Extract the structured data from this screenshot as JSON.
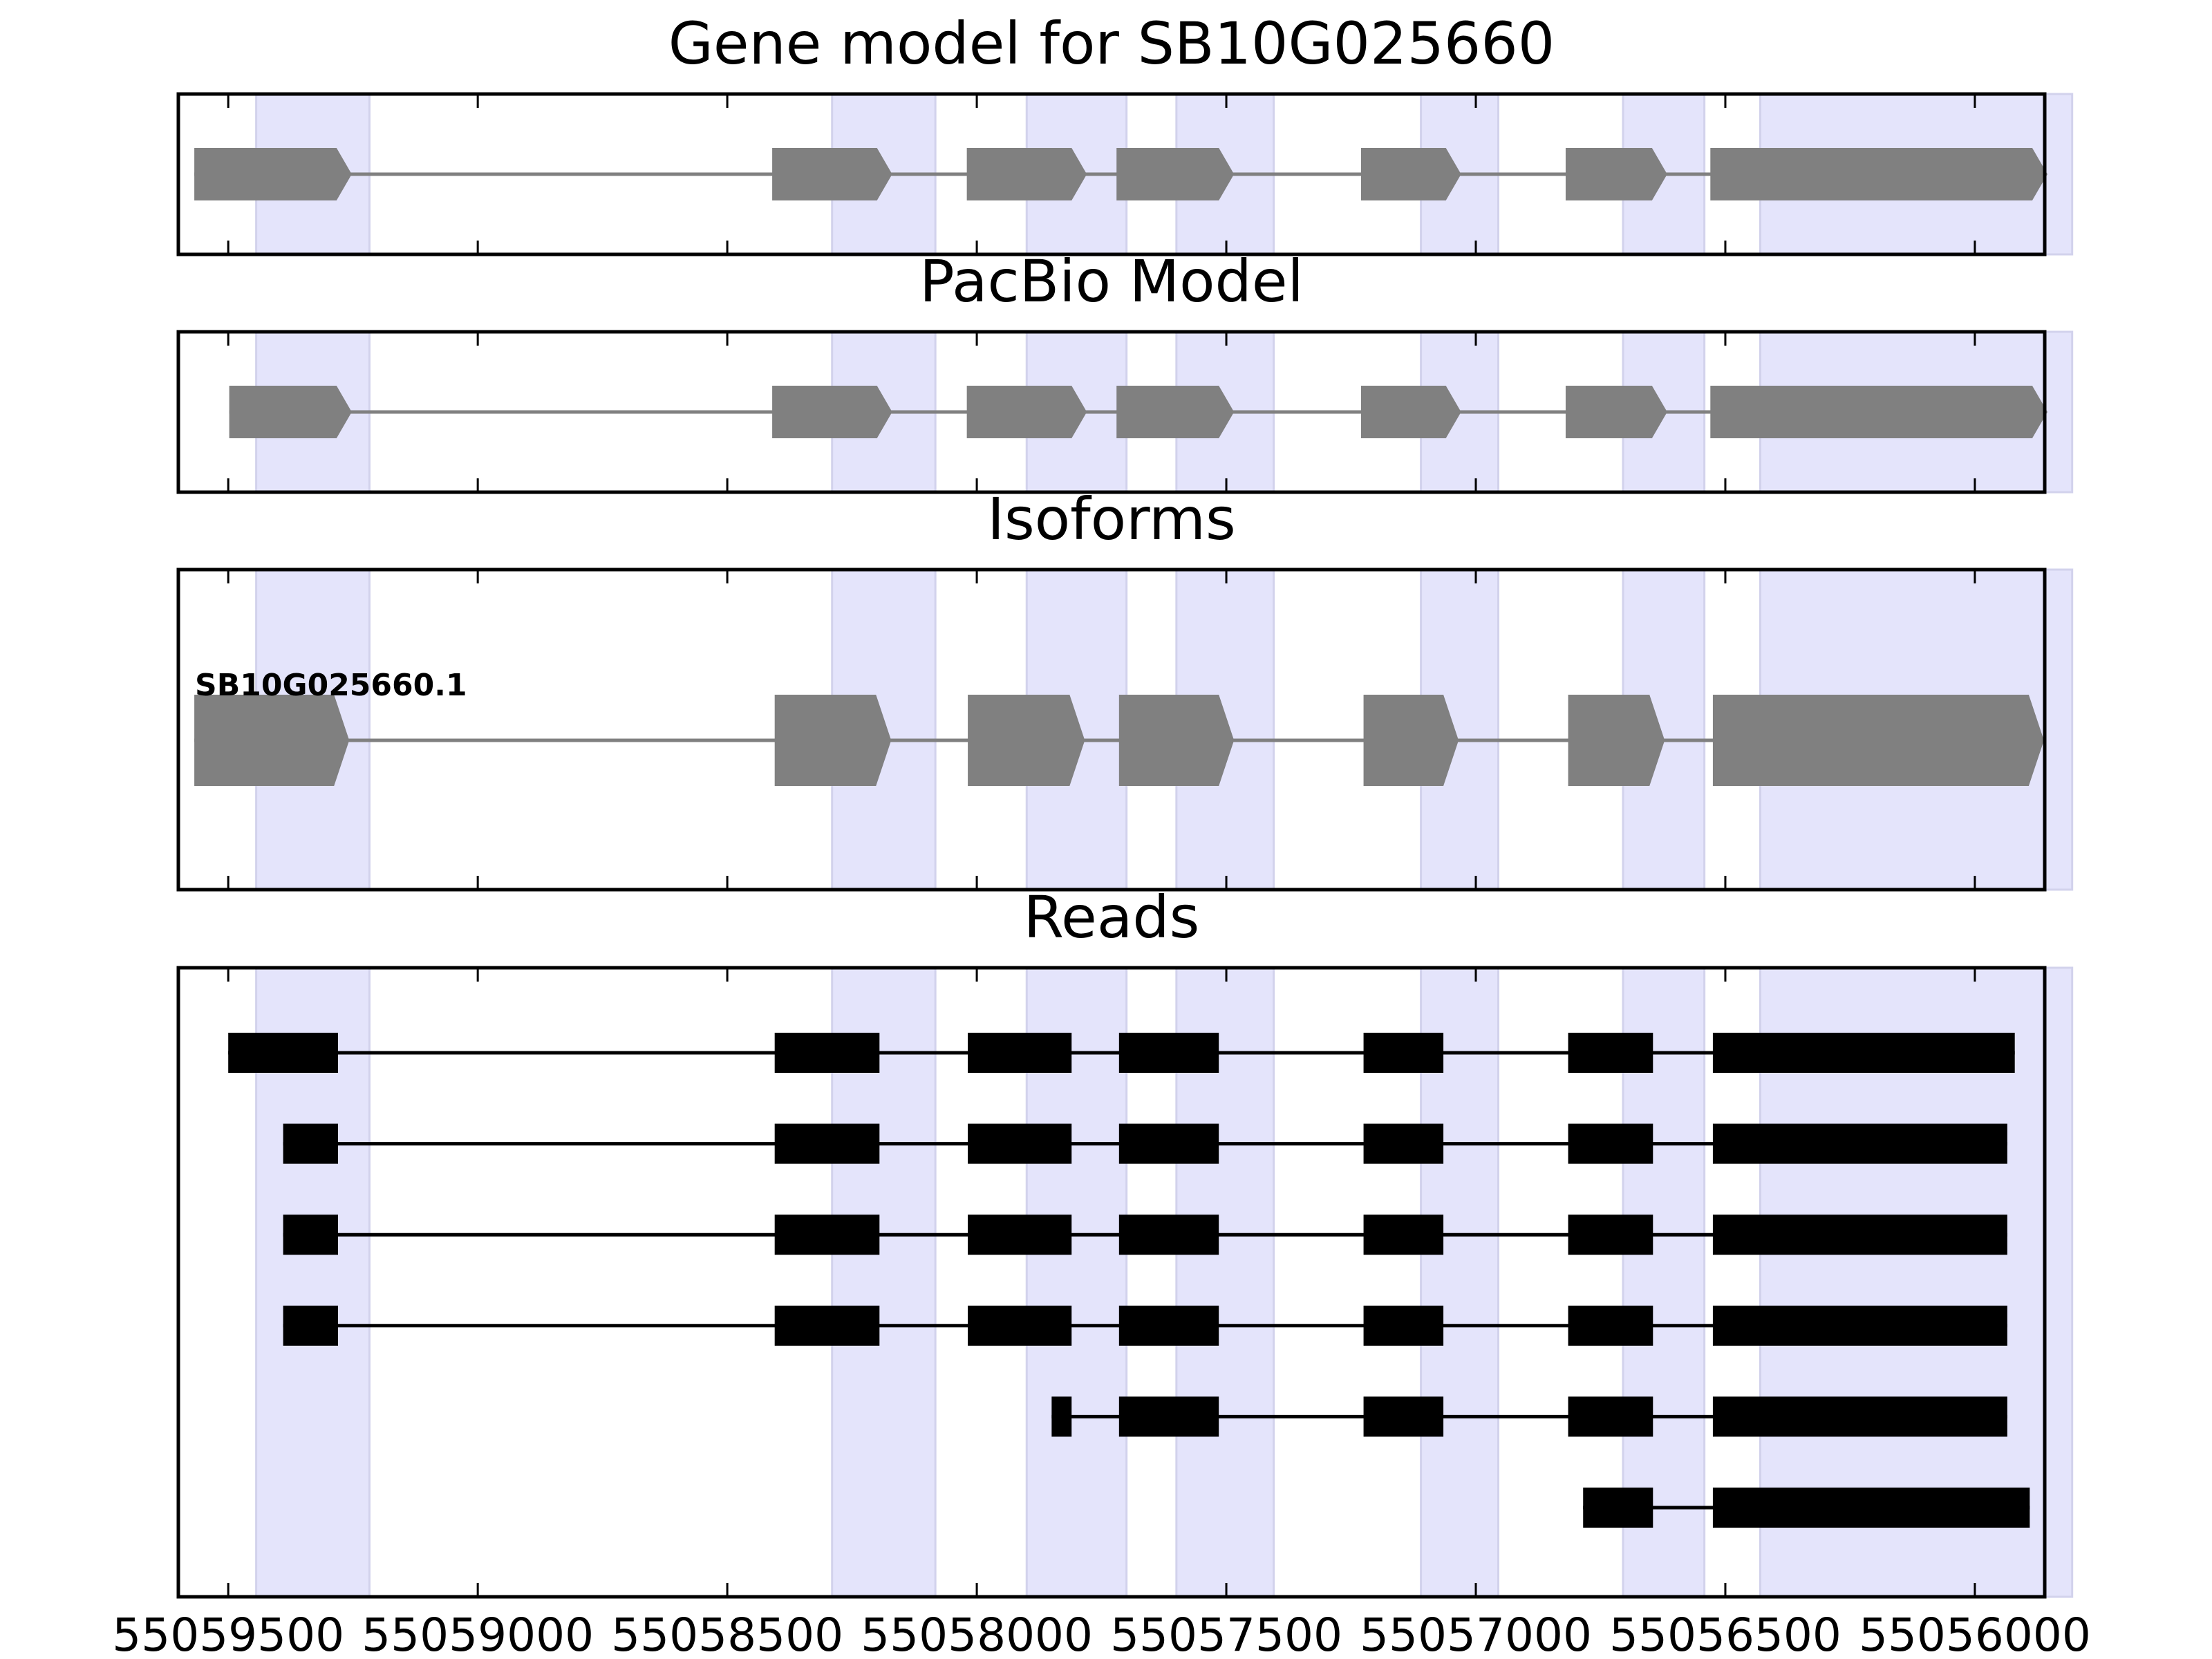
{
  "figure": {
    "panels": [
      {
        "key": "gene_model",
        "title": "Gene model for SB10G025660",
        "kind": "arrow"
      },
      {
        "key": "pacbio",
        "title": "PacBio Model",
        "kind": "arrow"
      },
      {
        "key": "isoforms",
        "title": "Isoforms",
        "kind": "arrow"
      },
      {
        "key": "reads",
        "title": "Reads",
        "kind": "block"
      }
    ],
    "x_ticks": [
      "55059500",
      "55059000",
      "55058500",
      "55058000",
      "55057500",
      "55057000",
      "55056500",
      "55056000"
    ]
  },
  "chart_data": {
    "type": "gene_track",
    "x_axis": {
      "ticks": [
        55059500,
        55059000,
        55058500,
        55058000,
        55057500,
        55057000,
        55056500,
        55056000
      ],
      "reversed": true,
      "range": [
        55059600,
        55055860
      ]
    },
    "highlight_regions": [
      [
        55059444,
        55059217
      ],
      [
        55058290,
        55058083
      ],
      [
        55057900,
        55057700
      ],
      [
        55057600,
        55057405
      ],
      [
        55057110,
        55056955
      ],
      [
        55056705,
        55056542
      ],
      [
        55056430,
        55055805
      ]
    ],
    "colors": {
      "feature": "#808080",
      "read": "#000000",
      "highlight": "#e4e4fb",
      "highlight_edge": "#d2d2ec"
    },
    "gene_model": {
      "strand": "-",
      "exons": [
        [
          55059568,
          55059283
        ],
        [
          55058410,
          55058200
        ],
        [
          55058020,
          55057810
        ],
        [
          55057720,
          55057515
        ],
        [
          55057230,
          55057060
        ],
        [
          55056820,
          55056647
        ],
        [
          55056530,
          55055885
        ]
      ]
    },
    "pacbio": {
      "strand": "-",
      "exons": [
        [
          55059498,
          55059283
        ],
        [
          55058410,
          55058200
        ],
        [
          55058020,
          55057810
        ],
        [
          55057720,
          55057515
        ],
        [
          55057230,
          55057060
        ],
        [
          55056820,
          55056647
        ],
        [
          55056530,
          55055885
        ]
      ]
    },
    "isoforms": [
      {
        "name": "SB10G025660.1",
        "strand": "-",
        "exons": [
          [
            55059568,
            55059288
          ],
          [
            55058405,
            55058202
          ],
          [
            55058018,
            55057814
          ],
          [
            55057715,
            55057515
          ],
          [
            55057225,
            55057065
          ],
          [
            55056815,
            55056652
          ],
          [
            55056525,
            55055892
          ]
        ]
      }
    ],
    "reads": [
      {
        "exons": [
          [
            55059500,
            55059280
          ],
          [
            55058405,
            55058195
          ],
          [
            55058018,
            55057810
          ],
          [
            55057715,
            55057515
          ],
          [
            55057225,
            55057065
          ],
          [
            55056815,
            55056645
          ],
          [
            55056525,
            55055920
          ]
        ]
      },
      {
        "exons": [
          [
            55059390,
            55059280
          ],
          [
            55058405,
            55058195
          ],
          [
            55058018,
            55057810
          ],
          [
            55057715,
            55057515
          ],
          [
            55057225,
            55057065
          ],
          [
            55056815,
            55056645
          ],
          [
            55056525,
            55055935
          ]
        ]
      },
      {
        "exons": [
          [
            55059390,
            55059280
          ],
          [
            55058405,
            55058195
          ],
          [
            55058018,
            55057810
          ],
          [
            55057715,
            55057515
          ],
          [
            55057225,
            55057065
          ],
          [
            55056815,
            55056645
          ],
          [
            55056525,
            55055935
          ]
        ]
      },
      {
        "exons": [
          [
            55059390,
            55059280
          ],
          [
            55058405,
            55058195
          ],
          [
            55058018,
            55057810
          ],
          [
            55057715,
            55057515
          ],
          [
            55057225,
            55057065
          ],
          [
            55056815,
            55056645
          ],
          [
            55056525,
            55055935
          ]
        ]
      },
      {
        "exons": [
          [
            55057850,
            55057810
          ],
          [
            55057715,
            55057515
          ],
          [
            55057225,
            55057065
          ],
          [
            55056815,
            55056645
          ],
          [
            55056525,
            55055935
          ]
        ]
      },
      {
        "exons": [
          [
            55056785,
            55056645
          ],
          [
            55056525,
            55055890
          ]
        ]
      }
    ]
  }
}
